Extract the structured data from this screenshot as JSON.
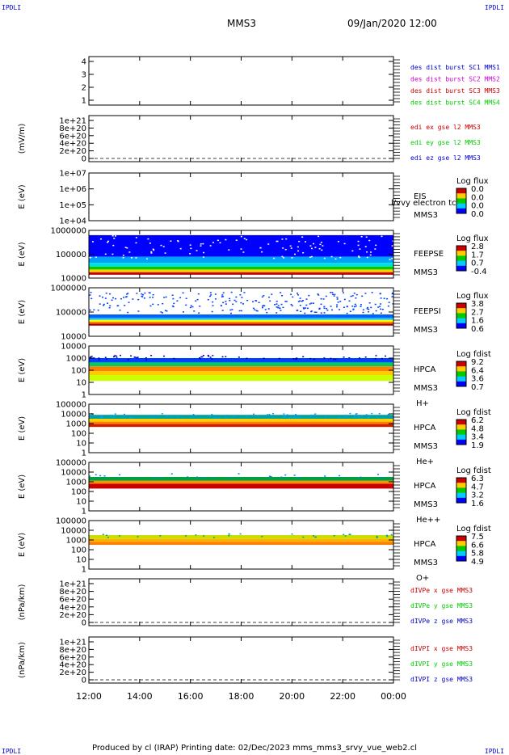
{
  "corners": {
    "tl": "IPDLI",
    "tr": "IPDLI",
    "bl": "IPDLI",
    "br": "IPDLI"
  },
  "header": {
    "spacecraft": "MMS3",
    "datetime": "09/Jan/2020 12:00"
  },
  "footer": "Produced by cl (IRAP)   Printing date: 02/Dec/2023   mms_mms3_srvy_vue_web2.cl",
  "colors": {
    "blue": "#0000cc",
    "magenta": "#cc00cc",
    "red": "#cc0000",
    "green": "#00cc00",
    "spec_low": "#0000ff",
    "spec_high": "#800000"
  },
  "chart_data": [
    {
      "id": "des",
      "type": "table",
      "ylabel": "",
      "yticks": [
        "1",
        "2",
        "3",
        "4"
      ],
      "legend": [
        {
          "text": "des dist burst SC1 MMS1",
          "color": "#0000cc"
        },
        {
          "text": "des dist burst SC2 MMS2",
          "color": "#cc00cc"
        },
        {
          "text": "des dist burst SC3 MMS3",
          "color": "#cc0000"
        },
        {
          "text": "des dist burst SC4 MMS4",
          "color": "#00cc00"
        }
      ]
    },
    {
      "id": "edi",
      "type": "line",
      "ylabel": "(mV/m)",
      "yticks": [
        "0",
        "2e+20",
        "4e+20",
        "6e+20",
        "8e+20",
        "1e+21"
      ],
      "legend": [
        {
          "text": "edi ex gse l2 MMS3",
          "color": "#cc0000"
        },
        {
          "text": "edi ey gse l2 MMS3",
          "color": "#00cc00"
        },
        {
          "text": "edi ez gse l2 MMS3",
          "color": "#0000cc"
        }
      ]
    },
    {
      "id": "eis",
      "type": "heatmap",
      "ylabel": "E (eV)",
      "yticks": [
        "1e+04",
        "1e+05",
        "1e+06",
        "1e+07"
      ],
      "label_lines": [
        "EIS",
        "MMS3"
      ],
      "overlay_text": "l/vvy electron tc",
      "cbar_title": "Log flux",
      "cbar_ticks": [
        "0.0",
        "0.0",
        "0.0",
        "0.0"
      ]
    },
    {
      "id": "feepse",
      "type": "heatmap",
      "ylabel": "E (eV)",
      "yticks": [
        "10000",
        "100000",
        "1000000"
      ],
      "label_lines": [
        "FEEPSE",
        "MMS3"
      ],
      "cbar_title": "Log flux",
      "cbar_ticks": [
        "2.8",
        "1.7",
        "0.7",
        "-0.4"
      ]
    },
    {
      "id": "feepsi",
      "type": "heatmap",
      "ylabel": "E (eV)",
      "yticks": [
        "10000",
        "100000",
        "1000000"
      ],
      "label_lines": [
        "FEEPSI",
        "MMS3"
      ],
      "cbar_title": "Log flux",
      "cbar_ticks": [
        "3.8",
        "2.7",
        "1.6",
        "0.6"
      ]
    },
    {
      "id": "hpca_h",
      "type": "heatmap",
      "ylabel": "E (eV)",
      "yticks": [
        "1",
        "10",
        "100",
        "1000",
        "10000"
      ],
      "label_lines": [
        "HPCA",
        "MMS3",
        "H+"
      ],
      "cbar_title": "Log fdist",
      "cbar_ticks": [
        "9.2",
        "6.4",
        "3.6",
        "0.7"
      ]
    },
    {
      "id": "hpca_he",
      "type": "heatmap",
      "ylabel": "E (eV)",
      "yticks": [
        "1",
        "10",
        "100",
        "1000",
        "10000",
        "100000"
      ],
      "label_lines": [
        "HPCA",
        "MMS3",
        "He+"
      ],
      "cbar_title": "Log fdist",
      "cbar_ticks": [
        "6.2",
        "4.8",
        "3.4",
        "1.9"
      ]
    },
    {
      "id": "hpca_hepp",
      "type": "heatmap",
      "ylabel": "E (eV)",
      "yticks": [
        "1",
        "10",
        "100",
        "1000",
        "10000",
        "100000"
      ],
      "label_lines": [
        "HPCA",
        "MMS3",
        "He++"
      ],
      "cbar_title": "Log fdist",
      "cbar_ticks": [
        "6.3",
        "4.7",
        "3.2",
        "1.6"
      ]
    },
    {
      "id": "hpca_o",
      "type": "heatmap",
      "ylabel": "E (eV)",
      "yticks": [
        "1",
        "10",
        "100",
        "1000",
        "10000",
        "100000"
      ],
      "label_lines": [
        "HPCA",
        "MMS3",
        "O+"
      ],
      "cbar_title": "Log fdist",
      "cbar_ticks": [
        "7.5",
        "6.6",
        "5.8",
        "4.9"
      ]
    },
    {
      "id": "divpe",
      "type": "line",
      "ylabel": "(nPa/km)",
      "yticks": [
        "0",
        "2e+20",
        "4e+20",
        "6e+20",
        "8e+20",
        "1e+21"
      ],
      "legend": [
        {
          "text": "dIVPe x gse MMS3",
          "color": "#cc0000"
        },
        {
          "text": "dIVPe y gse MMS3",
          "color": "#00cc00"
        },
        {
          "text": "dIVPe z gse MMS3",
          "color": "#0000cc"
        }
      ]
    },
    {
      "id": "divpi",
      "type": "line",
      "ylabel": "(nPa/km)",
      "yticks": [
        "0",
        "2e+20",
        "4e+20",
        "6e+20",
        "8e+20",
        "1e+21"
      ],
      "legend": [
        {
          "text": "dIVPI x gse MMS3",
          "color": "#cc0000"
        },
        {
          "text": "dIVPI y gse MMS3",
          "color": "#00cc00"
        },
        {
          "text": "dIVPI z gse MMS3",
          "color": "#0000cc"
        }
      ]
    }
  ],
  "xaxis": {
    "ticks": [
      "12:00",
      "14:00",
      "16:00",
      "18:00",
      "20:00",
      "22:00",
      "00:00"
    ]
  }
}
